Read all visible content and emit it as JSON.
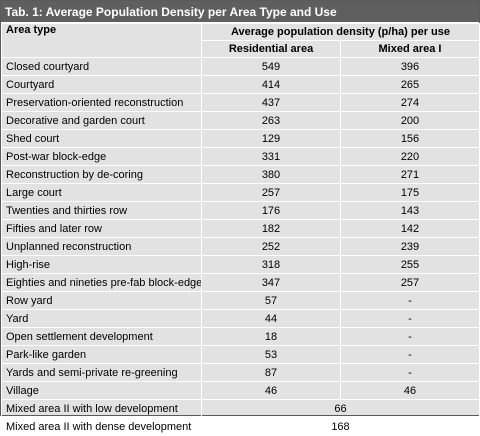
{
  "title": "Tab. 1: Average Population Density per Area Type and Use",
  "header": {
    "area_type": "Area type",
    "density": "Average population density (p/ha) per use",
    "residential": "Residential area",
    "mixed": "Mixed area I"
  },
  "rows": [
    {
      "area": "Closed courtyard",
      "residential": "549",
      "mixed": "396"
    },
    {
      "area": "Courtyard",
      "residential": "414",
      "mixed": "265"
    },
    {
      "area": "Preservation-oriented reconstruction",
      "residential": "437",
      "mixed": "274"
    },
    {
      "area": "Decorative and garden court",
      "residential": "263",
      "mixed": "200"
    },
    {
      "area": "Shed court",
      "residential": "129",
      "mixed": "156"
    },
    {
      "area": "Post-war block-edge",
      "residential": "331",
      "mixed": "220"
    },
    {
      "area": "Reconstruction by de-coring",
      "residential": "380",
      "mixed": "271"
    },
    {
      "area": "Large court",
      "residential": "257",
      "mixed": "175"
    },
    {
      "area": "Twenties and thirties row",
      "residential": "176",
      "mixed": "143"
    },
    {
      "area": "Fifties and later row",
      "residential": "182",
      "mixed": "142"
    },
    {
      "area": "Unplanned reconstruction",
      "residential": "252",
      "mixed": "239"
    },
    {
      "area": "High-rise",
      "residential": "318",
      "mixed": "255"
    },
    {
      "area": "Eighties and nineties pre-fab block-edge",
      "residential": "347",
      "mixed": "257"
    },
    {
      "area": "Row yard",
      "residential": "57",
      "mixed": "-"
    },
    {
      "area": "Yard",
      "residential": "44",
      "mixed": "-"
    },
    {
      "area": "Open settlement development",
      "residential": "18",
      "mixed": "-"
    },
    {
      "area": "Park-like garden",
      "residential": "53",
      "mixed": "-"
    },
    {
      "area": "Yards and semi-private re-greening",
      "residential": "87",
      "mixed": "-"
    },
    {
      "area": "Village",
      "residential": "46",
      "mixed": "46"
    }
  ],
  "merged_rows": [
    {
      "area": "Mixed area II with low development",
      "value": "66"
    },
    {
      "area": "Mixed area II with dense development",
      "value": "168"
    }
  ]
}
